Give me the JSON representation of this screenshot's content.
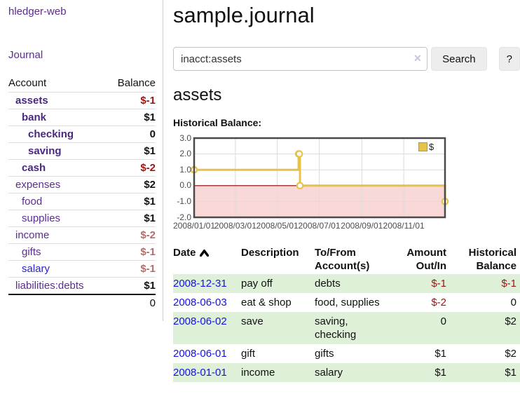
{
  "app": {
    "title": "hledger-web"
  },
  "sidebar": {
    "journal_link": "Journal",
    "accounts_header": {
      "account": "Account",
      "balance": "Balance"
    },
    "accounts": [
      {
        "name": "assets",
        "depth": 1,
        "bold": true,
        "balance": "$-1",
        "neg": "dark"
      },
      {
        "name": "bank",
        "depth": 2,
        "bold": true,
        "balance": "$1",
        "neg": "none"
      },
      {
        "name": "checking",
        "depth": 3,
        "bold": true,
        "balance": "0",
        "neg": "none"
      },
      {
        "name": "saving",
        "depth": 3,
        "bold": true,
        "balance": "$1",
        "neg": "none"
      },
      {
        "name": "cash",
        "depth": 2,
        "bold": true,
        "balance": "$-2",
        "neg": "dark"
      },
      {
        "name": "expenses",
        "depth": 1,
        "bold": false,
        "balance": "$2",
        "neg": "none"
      },
      {
        "name": "food",
        "depth": 2,
        "bold": false,
        "balance": "$1",
        "neg": "none"
      },
      {
        "name": "supplies",
        "depth": 2,
        "bold": false,
        "balance": "$1",
        "neg": "none"
      },
      {
        "name": "income",
        "depth": 1,
        "bold": false,
        "balance": "$-2",
        "neg": "light"
      },
      {
        "name": "gifts",
        "depth": 2,
        "bold": false,
        "balance": "$-1",
        "neg": "light"
      },
      {
        "name": "salary",
        "depth": 2,
        "bold": false,
        "balance": "$-1",
        "neg": "light",
        "blue": true
      },
      {
        "name": "liabilities:debts",
        "depth": 1,
        "bold": false,
        "balance": "$1",
        "neg": "none"
      }
    ],
    "total": "0"
  },
  "header": {
    "title": "sample.journal"
  },
  "search": {
    "value": "inacct:assets",
    "clear_icon": "×",
    "button_label": "Search",
    "help_label": "?"
  },
  "account_page": {
    "title": "assets",
    "chart_label": "Historical Balance:"
  },
  "chart_data": {
    "type": "line",
    "step": true,
    "title": "Historical Balance",
    "series": [
      {
        "name": "$",
        "points": [
          [
            "2008-01-01",
            1
          ],
          [
            "2008-06-01",
            2
          ],
          [
            "2008-06-02",
            2
          ],
          [
            "2008-06-03",
            0
          ],
          [
            "2008-12-31",
            -1
          ]
        ]
      }
    ],
    "x_range": [
      "2008-01-01",
      "2008-12-31"
    ],
    "x_ticks": [
      "2008/01/01",
      "2008/03/01",
      "2008/05/01",
      "2008/07/01",
      "2008/09/01",
      "2008/11/01"
    ],
    "y_ticks": [
      3.0,
      2.0,
      1.0,
      0.0,
      -1.0,
      -2.0
    ],
    "ylim": [
      -2,
      3
    ],
    "legend": {
      "label": "$",
      "position": "top-right"
    },
    "grid": true,
    "below_zero_shaded": true,
    "zero_line": true
  },
  "register": {
    "columns": [
      "Date",
      "Description",
      "To/From Account(s)",
      "Amount Out/In",
      "Historical Balance"
    ],
    "rows": [
      {
        "date": "2008-12-31",
        "description": "pay off",
        "accounts": "debts",
        "amount": "$-1",
        "amount_neg": true,
        "balance": "$-1",
        "balance_neg": true
      },
      {
        "date": "2008-06-03",
        "description": "eat & shop",
        "accounts": "food, supplies",
        "amount": "$-2",
        "amount_neg": true,
        "balance": "0",
        "balance_neg": false
      },
      {
        "date": "2008-06-02",
        "description": "save",
        "accounts": "saving, checking",
        "amount": "0",
        "amount_neg": false,
        "balance": "$2",
        "balance_neg": false
      },
      {
        "date": "2008-06-01",
        "description": "gift",
        "accounts": "gifts",
        "amount": "$1",
        "amount_neg": false,
        "balance": "$2",
        "balance_neg": false
      },
      {
        "date": "2008-01-01",
        "description": "income",
        "accounts": "salary",
        "amount": "$1",
        "amount_neg": false,
        "balance": "$1",
        "balance_neg": false
      }
    ]
  },
  "colors": {
    "link_purple": "#5c2d91",
    "bold_account_purple": "#4a2882",
    "link_blue": "#2b22cc",
    "date_blue": "#1414dd",
    "negative_dark": "#9a1515",
    "negative_light": "#b06e6e",
    "row_green": "#dff0d8",
    "chart_line_gold": "#e7c24b",
    "chart_below_zero": "#f9d8d8",
    "zero_line_red": "#8b0000",
    "grid_gray": "#dcdcdc",
    "chart_border": "#4a4a4a",
    "button_bg": "#ededed"
  }
}
